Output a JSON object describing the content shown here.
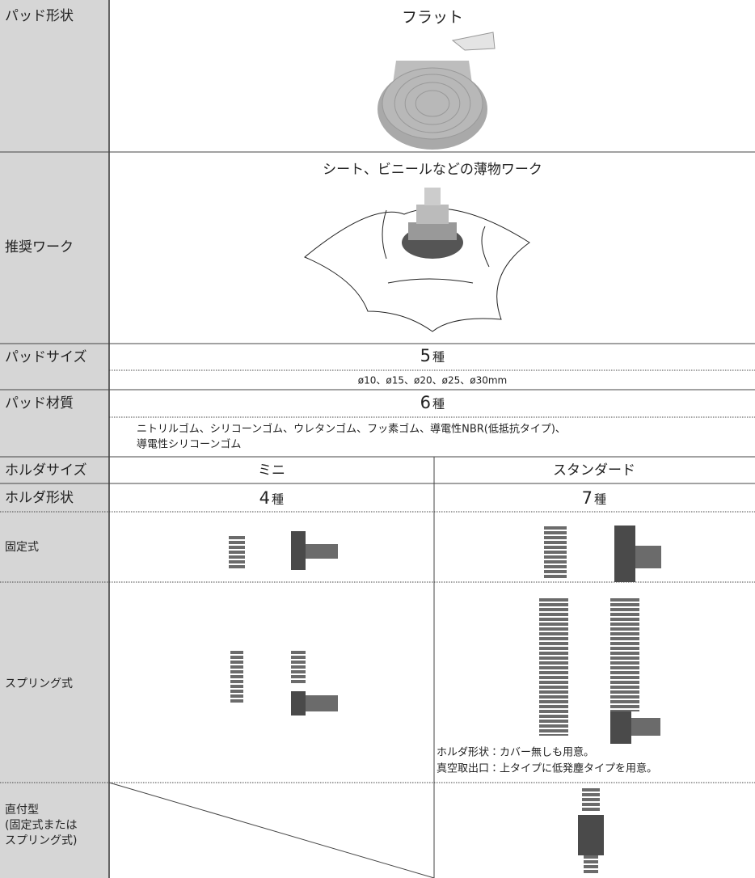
{
  "rows": [
    {
      "label": "パッド形状",
      "content": "フラット"
    },
    {
      "label": "推奨ワーク",
      "content": "シート、ビニールなどの薄物ワーク"
    },
    {
      "label": "パッドサイズ",
      "count": "5",
      "unit": "種",
      "detail": "ø10、ø15、ø20、ø25、ø30mm"
    },
    {
      "label": "パッド材質",
      "count": "6",
      "unit": "種",
      "detail": [
        "ニトリルゴム、シリコーンゴム、ウレタンゴム、フッ素ゴム、導電性NBR(低抵抗タイプ)、",
        "導電性シリコーンゴム"
      ]
    },
    {
      "label": "ホルダサイズ",
      "mini": "ミニ",
      "standard": "スタンダード"
    },
    {
      "label": "ホルダ形状",
      "mini_count": "4",
      "standard_count": "7",
      "unit": "種"
    },
    {
      "label": "固定式"
    },
    {
      "label": "スプリング式",
      "notes": [
        "ホルダ形状：カバー無しも用意。",
        "真空取出口：上タイプに低発塵タイプを用意。"
      ]
    },
    {
      "label": [
        "直付型",
        "(固定式または",
        "スプリング式)"
      ]
    }
  ]
}
